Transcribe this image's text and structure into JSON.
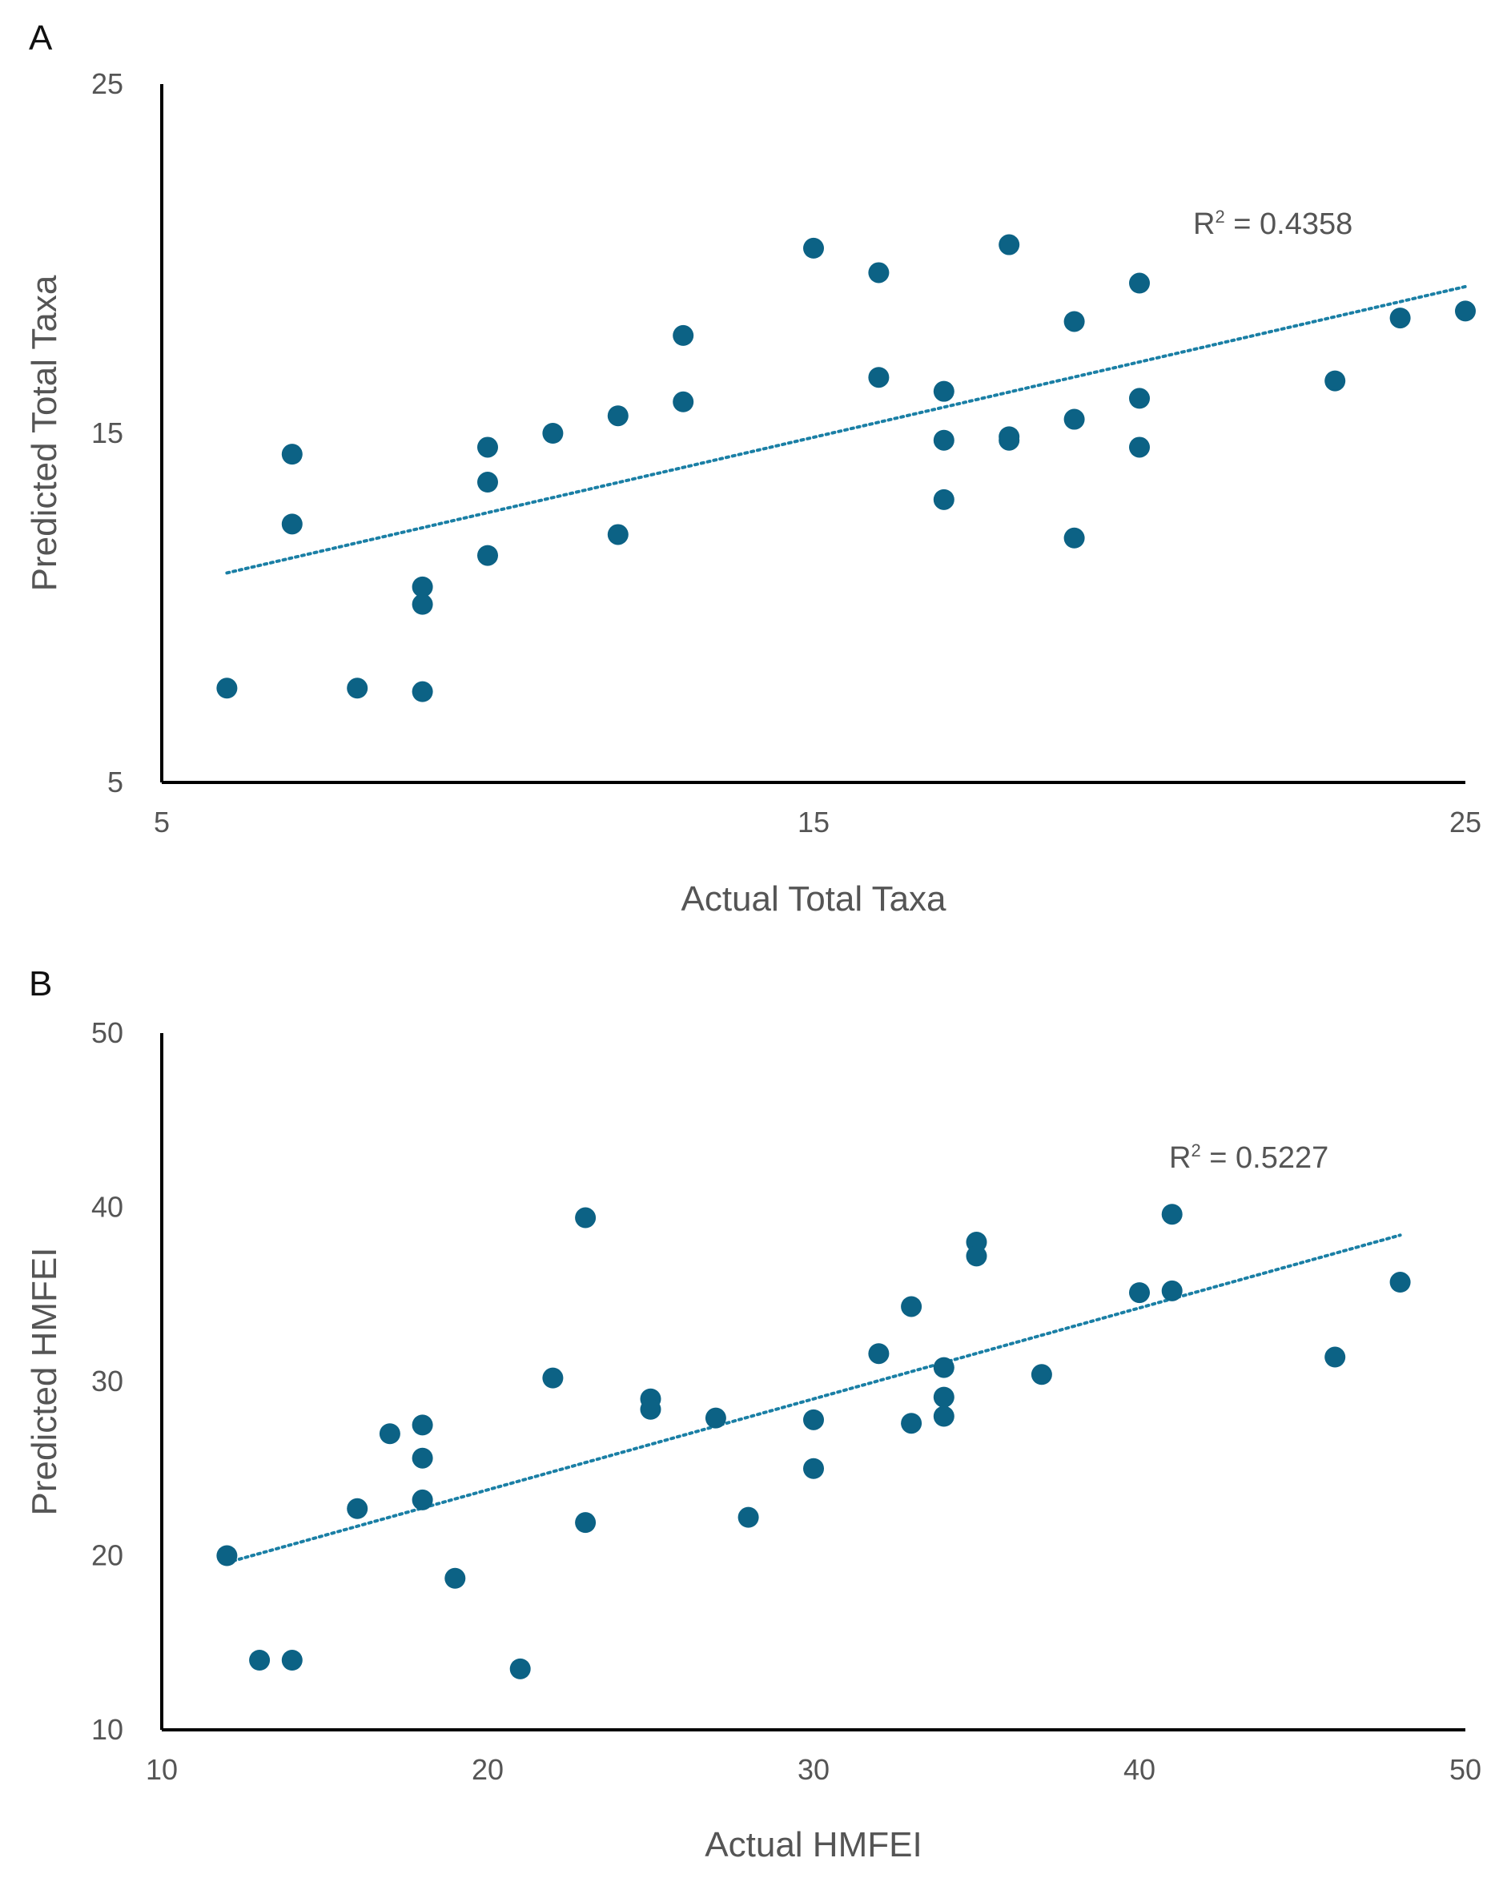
{
  "colors": {
    "marker": "#0c6285",
    "trend": "#1a7fa5",
    "axis": "#000000",
    "text": "#555555"
  },
  "chart_data": [
    {
      "panel": "A",
      "type": "scatter",
      "xlabel": "Actual Total Taxa",
      "ylabel": "Predicted Total Taxa",
      "xlim": [
        5,
        25
      ],
      "ylim": [
        5,
        25
      ],
      "xticks": [
        "5",
        "15",
        "25"
      ],
      "yticks": [
        "5",
        "15",
        "25"
      ],
      "annotation": {
        "prefix": "R",
        "sup": "2",
        "value": " = 0.4358"
      },
      "trendline": {
        "x": [
          6,
          25
        ],
        "y": [
          11.0,
          19.2
        ]
      },
      "points": [
        [
          6,
          7.7
        ],
        [
          7,
          14.4
        ],
        [
          7,
          12.4
        ],
        [
          8,
          7.7
        ],
        [
          9,
          7.6
        ],
        [
          9,
          10.6
        ],
        [
          9,
          10.1
        ],
        [
          10,
          14.6
        ],
        [
          10,
          13.6
        ],
        [
          10,
          11.5
        ],
        [
          11,
          15.0
        ],
        [
          12,
          15.5
        ],
        [
          12,
          12.1
        ],
        [
          13,
          17.8
        ],
        [
          13,
          15.9
        ],
        [
          15,
          20.3
        ],
        [
          16,
          19.6
        ],
        [
          16,
          16.6
        ],
        [
          17,
          16.2
        ],
        [
          17,
          14.8
        ],
        [
          17,
          13.1
        ],
        [
          18,
          20.4
        ],
        [
          18,
          14.9
        ],
        [
          18,
          14.8
        ],
        [
          19,
          18.2
        ],
        [
          19,
          15.4
        ],
        [
          19,
          12.0
        ],
        [
          20,
          19.3
        ],
        [
          20,
          16.0
        ],
        [
          20,
          14.6
        ],
        [
          23,
          16.5
        ],
        [
          24,
          18.3
        ],
        [
          25,
          18.5
        ]
      ]
    },
    {
      "panel": "B",
      "type": "scatter",
      "xlabel": "Actual HMFEI",
      "ylabel": "Predicted HMFEI",
      "xlim": [
        10,
        50
      ],
      "ylim": [
        10,
        50
      ],
      "xticks": [
        "10",
        "20",
        "30",
        "40",
        "50"
      ],
      "yticks": [
        "10",
        "20",
        "30",
        "40",
        "50"
      ],
      "annotation": {
        "prefix": "R",
        "sup": "2",
        "value": " = 0.5227"
      },
      "trendline": {
        "x": [
          12,
          48
        ],
        "y": [
          19.6,
          38.4
        ]
      },
      "points": [
        [
          12,
          20.0
        ],
        [
          13,
          14.0
        ],
        [
          14,
          14.0
        ],
        [
          16,
          22.7
        ],
        [
          17,
          27.0
        ],
        [
          18,
          27.5
        ],
        [
          18,
          25.6
        ],
        [
          18,
          23.2
        ],
        [
          19,
          18.7
        ],
        [
          21,
          13.5
        ],
        [
          22,
          30.2
        ],
        [
          23,
          39.4
        ],
        [
          23,
          21.9
        ],
        [
          25,
          29.0
        ],
        [
          25,
          28.4
        ],
        [
          27,
          27.9
        ],
        [
          28,
          22.2
        ],
        [
          30,
          27.8
        ],
        [
          30,
          25.0
        ],
        [
          32,
          31.6
        ],
        [
          33,
          34.3
        ],
        [
          33,
          27.6
        ],
        [
          34,
          30.8
        ],
        [
          34,
          29.1
        ],
        [
          34,
          28.0
        ],
        [
          35,
          38.0
        ],
        [
          35,
          37.2
        ],
        [
          37,
          30.4
        ],
        [
          40,
          35.1
        ],
        [
          41,
          39.6
        ],
        [
          41,
          35.2
        ],
        [
          46,
          31.4
        ],
        [
          48,
          35.7
        ]
      ]
    }
  ]
}
